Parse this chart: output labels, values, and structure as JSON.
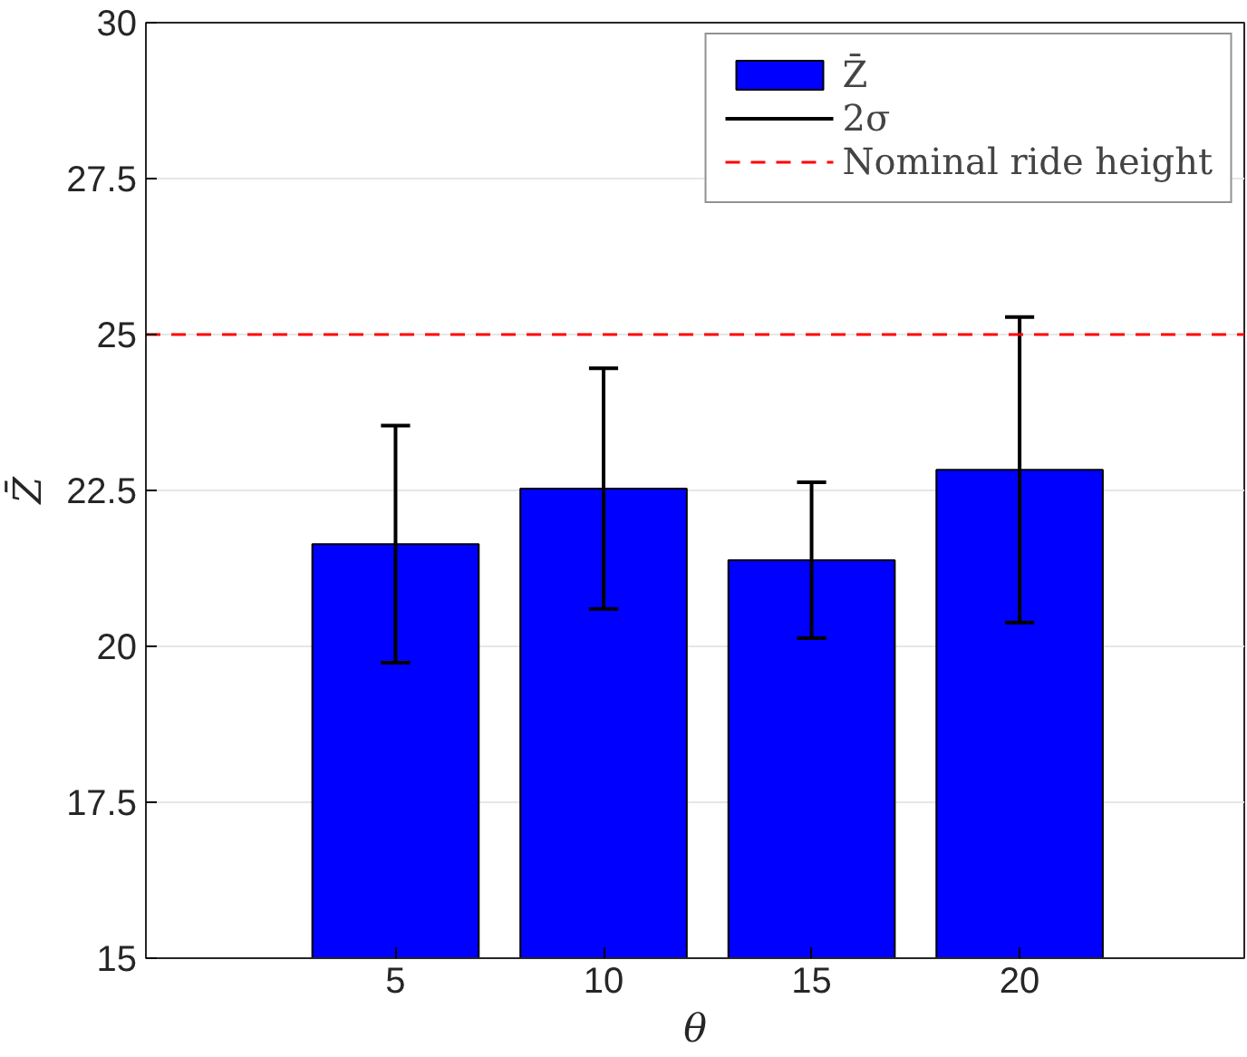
{
  "chart_data": {
    "type": "bar",
    "xlabel": "θ",
    "ylabel": "Z̄",
    "x": [
      5,
      10,
      15,
      20
    ],
    "series": [
      {
        "name": "Z̄",
        "color": "#0000ff",
        "values": [
          21.64,
          22.53,
          21.38,
          22.83
        ],
        "errors": [
          1.9,
          1.93,
          1.25,
          2.45
        ]
      }
    ],
    "annotations": [
      "2σ"
    ],
    "xlim": [
      -1,
      25.4
    ],
    "xticks": [
      5,
      10,
      15,
      20
    ],
    "ylim": [
      15,
      30
    ],
    "yticks": [
      15,
      17.5,
      20,
      22.5,
      25,
      27.5,
      30
    ],
    "ref_lines": [
      {
        "axis": "y",
        "value": 25,
        "label": "Nominal ride height",
        "color": "#ff0000",
        "line_style": "dashed"
      }
    ],
    "grid": "y",
    "legend": "top right"
  }
}
